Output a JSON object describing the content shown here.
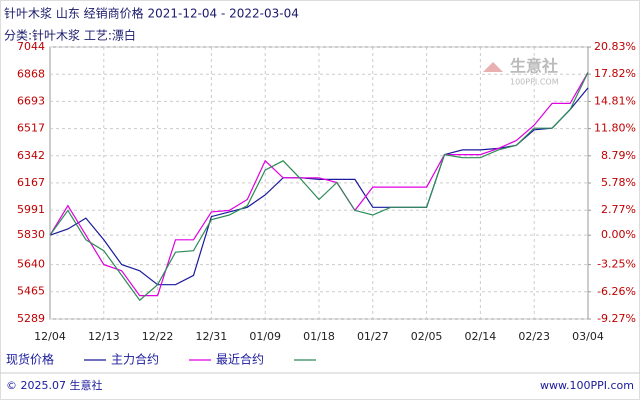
{
  "chart_data": {
    "type": "line",
    "title": "针叶木浆 山东 经销商价格 2021-12-04 - 2022-03-04",
    "subtitle": "分类:针叶木浆 工艺:漂白",
    "categories": [
      "12/04",
      null,
      null,
      "12/13",
      null,
      null,
      "12/22",
      null,
      null,
      "12/31",
      null,
      null,
      "01/09",
      null,
      null,
      "01/18",
      null,
      null,
      "01/27",
      null,
      null,
      "02/05",
      null,
      null,
      "02/14",
      null,
      null,
      "02/23",
      null,
      null,
      "03/04"
    ],
    "series": [
      {
        "name": "现货价格",
        "color": "#1a1a9c",
        "values": [
          5830,
          5870,
          5940,
          5800,
          5640,
          5600,
          5510,
          5510,
          5570,
          5950,
          5980,
          6010,
          6090,
          6200,
          6200,
          6190,
          6190,
          6190,
          6010,
          6010,
          6010,
          6010,
          6350,
          6380,
          6380,
          6390,
          6410,
          6510,
          6520,
          6640,
          6780
        ]
      },
      {
        "name": "主力合约",
        "color": "#e000e0",
        "values": [
          5830,
          6020,
          5830,
          5640,
          5600,
          5440,
          5440,
          5800,
          5800,
          5980,
          5990,
          6060,
          6310,
          6200,
          6200,
          6200,
          6170,
          5990,
          6140,
          6140,
          6140,
          6140,
          6350,
          6350,
          6350,
          6390,
          6440,
          6540,
          6680,
          6680,
          6880
        ]
      },
      {
        "name": "最近合约",
        "color": "#2e8b57",
        "values": [
          5830,
          5990,
          5800,
          5730,
          5570,
          5410,
          5510,
          5720,
          5730,
          5930,
          5960,
          6020,
          6250,
          6310,
          6190,
          6060,
          6170,
          5990,
          5960,
          6010,
          6010,
          6010,
          6350,
          6330,
          6330,
          6380,
          6410,
          6520,
          6520,
          6640,
          6880
        ]
      }
    ],
    "ylim": [
      5289,
      7044
    ],
    "yticks": [
      7044,
      6868,
      6693,
      6517,
      6342,
      6167,
      5991,
      5830,
      5640,
      5465,
      5289
    ],
    "y2lim": [
      -9.27,
      20.83
    ],
    "y2ticks": [
      {
        "value": 20.83,
        "label": "20.83%"
      },
      {
        "value": 17.82,
        "label": "17.82%"
      },
      {
        "value": 14.81,
        "label": "14.81%"
      },
      {
        "value": 11.8,
        "label": "11.80%"
      },
      {
        "value": 8.79,
        "label": "8.79%"
      },
      {
        "value": 5.78,
        "label": "5.78%"
      },
      {
        "value": 2.77,
        "label": "2.77%"
      },
      {
        "value": 0,
        "label": "0.00%"
      },
      {
        "value": -3.25,
        "label": "-3.25%"
      },
      {
        "value": -6.26,
        "label": "-6.26%"
      },
      {
        "value": -9.27,
        "label": "-9.27%"
      }
    ],
    "grid": true,
    "watermark": {
      "name": "生意社",
      "site": "100PPI.COM"
    },
    "footer": {
      "left": "© 2025.07 生意社",
      "right": "www.100PPI.com"
    }
  }
}
